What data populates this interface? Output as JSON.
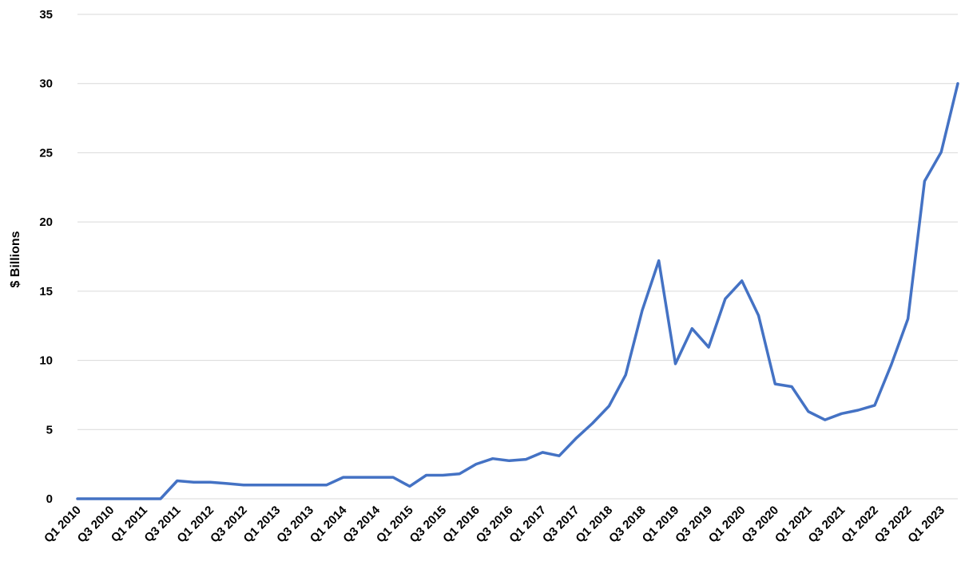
{
  "chart_data": {
    "type": "line",
    "title": "",
    "xlabel": "",
    "ylabel": "$ Billions",
    "ylim": [
      0,
      35
    ],
    "yticks": [
      0,
      5,
      10,
      15,
      20,
      25,
      30,
      35
    ],
    "grid": true,
    "legend": "none",
    "colors": {
      "line": "#4472C4",
      "grid": "#D9D9D9",
      "text": "#000000"
    },
    "categories": [
      "Q1 2010",
      "Q2 2010",
      "Q3 2010",
      "Q4 2010",
      "Q1 2011",
      "Q2 2011",
      "Q3 2011",
      "Q4 2011",
      "Q1 2012",
      "Q2 2012",
      "Q3 2012",
      "Q4 2012",
      "Q1 2013",
      "Q2 2013",
      "Q3 2013",
      "Q4 2013",
      "Q1 2014",
      "Q2 2014",
      "Q3 2014",
      "Q4 2014",
      "Q1 2015",
      "Q2 2015",
      "Q3 2015",
      "Q4 2015",
      "Q1 2016",
      "Q2 2016",
      "Q3 2016",
      "Q4 2016",
      "Q1 2017",
      "Q2 2017",
      "Q3 2017",
      "Q4 2017",
      "Q1 2018",
      "Q2 2018",
      "Q3 2018",
      "Q4 2018",
      "Q1 2019",
      "Q2 2019",
      "Q3 2019",
      "Q4 2019",
      "Q1 2020",
      "Q2 2020",
      "Q3 2020",
      "Q4 2020",
      "Q1 2021",
      "Q2 2021",
      "Q3 2021",
      "Q4 2021",
      "Q1 2022",
      "Q2 2022",
      "Q3 2022",
      "Q4 2022",
      "Q1 2023",
      "Q2 2023"
    ],
    "tick_labels": [
      "Q1 2010",
      "Q3 2010",
      "Q1 2011",
      "Q3 2011",
      "Q1 2012",
      "Q3 2012",
      "Q1 2013",
      "Q3 2013",
      "Q1 2014",
      "Q3 2014",
      "Q1 2015",
      "Q3 2015",
      "Q1 2016",
      "Q3 2016",
      "Q1 2017",
      "Q3 2017",
      "Q1 2018",
      "Q3 2018",
      "Q1 2019",
      "Q3 2019",
      "Q1 2020",
      "Q3 2020",
      "Q1 2021",
      "Q3 2021",
      "Q1 2022",
      "Q3 2022",
      "Q1 2023"
    ],
    "series": [
      {
        "values": [
          0.0,
          0.0,
          0.0,
          0.0,
          0.0,
          0.0,
          1.3,
          1.2,
          1.2,
          1.1,
          1.0,
          1.0,
          1.0,
          1.0,
          1.0,
          1.0,
          1.55,
          1.55,
          1.55,
          1.55,
          0.9,
          1.7,
          1.7,
          1.8,
          2.5,
          2.9,
          2.75,
          2.85,
          3.35,
          3.1,
          4.35,
          5.45,
          6.7,
          8.95,
          13.6,
          17.2,
          9.75,
          12.3,
          10.95,
          14.45,
          15.75,
          13.25,
          8.3,
          8.1,
          6.3,
          5.7,
          6.15,
          6.4,
          6.75,
          9.7,
          13.0,
          22.95,
          25.05,
          30.0
        ]
      }
    ]
  }
}
